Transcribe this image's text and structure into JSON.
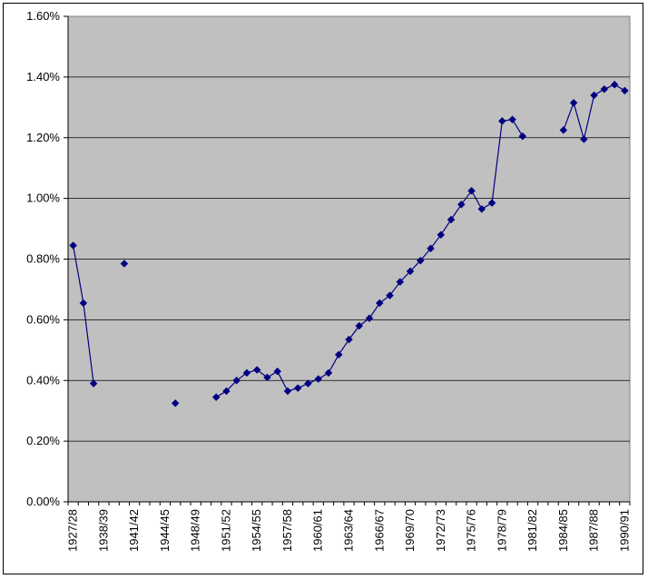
{
  "chart_data": {
    "type": "line",
    "title": "",
    "xlabel": "",
    "ylabel": "",
    "ylim": [
      0,
      0.016
    ],
    "yticks": [
      "0.00%",
      "0.20%",
      "0.40%",
      "0.60%",
      "0.80%",
      "1.00%",
      "1.20%",
      "1.40%",
      "1.60%"
    ],
    "xtick_labels": [
      "1927/28",
      "1938/39",
      "1941/42",
      "1944/45",
      "1948/49",
      "1951/52",
      "1954/55",
      "1957/58",
      "1960/61",
      "1963/64",
      "1966/67",
      "1969/70",
      "1972/73",
      "1975/76",
      "1978/79",
      "1981/82",
      "1984/85",
      "1987/88",
      "1990/91"
    ],
    "grid": true,
    "plot_background": "#C0C0C0",
    "series_color": "#000080",
    "marker": "diamond",
    "series": [
      {
        "values": [
          {
            "x": 0,
            "y": 0.00845
          },
          {
            "x": 1,
            "y": 0.00655
          },
          {
            "x": 2,
            "y": 0.0039
          },
          {
            "x": 5,
            "y": 0.00785
          },
          {
            "x": 10,
            "y": 0.00325
          },
          {
            "x": 14,
            "y": 0.00345
          },
          {
            "x": 15,
            "y": 0.00365
          },
          {
            "x": 16,
            "y": 0.004
          },
          {
            "x": 17,
            "y": 0.00425
          },
          {
            "x": 18,
            "y": 0.00435
          },
          {
            "x": 19,
            "y": 0.0041
          },
          {
            "x": 20,
            "y": 0.0043
          },
          {
            "x": 21,
            "y": 0.00365
          },
          {
            "x": 22,
            "y": 0.00375
          },
          {
            "x": 23,
            "y": 0.0039
          },
          {
            "x": 24,
            "y": 0.00405
          },
          {
            "x": 25,
            "y": 0.00425
          },
          {
            "x": 26,
            "y": 0.00485
          },
          {
            "x": 27,
            "y": 0.00535
          },
          {
            "x": 28,
            "y": 0.0058
          },
          {
            "x": 29,
            "y": 0.00605
          },
          {
            "x": 30,
            "y": 0.00655
          },
          {
            "x": 31,
            "y": 0.0068
          },
          {
            "x": 32,
            "y": 0.00725
          },
          {
            "x": 33,
            "y": 0.0076
          },
          {
            "x": 34,
            "y": 0.00795
          },
          {
            "x": 35,
            "y": 0.00835
          },
          {
            "x": 36,
            "y": 0.0088
          },
          {
            "x": 37,
            "y": 0.0093
          },
          {
            "x": 38,
            "y": 0.0098
          },
          {
            "x": 39,
            "y": 0.01025
          },
          {
            "x": 40,
            "y": 0.00965
          },
          {
            "x": 41,
            "y": 0.00985
          },
          {
            "x": 42,
            "y": 0.01255
          },
          {
            "x": 43,
            "y": 0.0126
          },
          {
            "x": 44,
            "y": 0.01205
          },
          {
            "x": null,
            "y": null
          },
          {
            "x": 48,
            "y": 0.01225
          },
          {
            "x": 49,
            "y": 0.01315
          },
          {
            "x": 50,
            "y": 0.01195
          },
          {
            "x": 51,
            "y": 0.0134
          },
          {
            "x": 52,
            "y": 0.0136
          },
          {
            "x": 53,
            "y": 0.01375
          },
          {
            "x": 54,
            "y": 0.01355
          }
        ]
      }
    ]
  }
}
